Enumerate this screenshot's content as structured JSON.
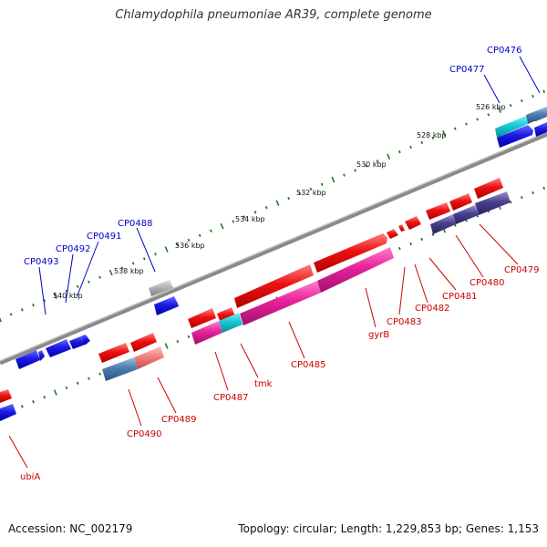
{
  "title": "Chlamydophila pneumoniae AR39, complete genome",
  "accession": "Accession: NC_002179",
  "topology": "Topology: circular; Length: 1,229,853 bp; Genes: 1,153",
  "colors": {
    "backbone": "#8a8a8a",
    "tick": "#1f7a1f",
    "forward_label": "#0000cc",
    "reverse_label": "#cc0000",
    "red": "#ee1111",
    "blue": "#1a1ae6",
    "grey": "#b4b4b4",
    "cyan": "#17c7d6",
    "steel": "#4a7fb0",
    "pink": "#e7229a",
    "navy": "#4a3f8e",
    "salmon": "#f08080"
  },
  "scale_labels": [
    "526 kbp",
    "528 kbp",
    "530 kbp",
    "532 kbp",
    "534 kbp",
    "536 kbp",
    "538 kbp",
    "540 kbp"
  ],
  "gene_labels": {
    "forward": [
      "CP0476",
      "CP0477",
      "CP0488",
      "CP0491",
      "CP0492",
      "CP0493"
    ],
    "reverse": [
      "CP0479",
      "CP0480",
      "CP0481",
      "CP0482",
      "CP0483",
      "gyrB",
      "CP0485",
      "tmk",
      "CP0487",
      "CP0489",
      "CP0490",
      "ubiA"
    ]
  }
}
